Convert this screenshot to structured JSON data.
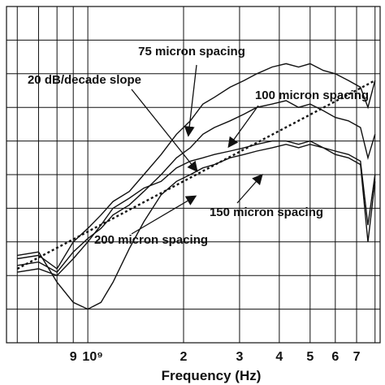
{
  "chart_data": {
    "type": "line",
    "title": "",
    "xlabel": "Frequency (Hz)",
    "ylabel": "",
    "x_scale": "log",
    "x_ticks": [
      {
        "value": 900000000.0,
        "label": "9"
      },
      {
        "value": 1000000000.0,
        "label": "10⁹"
      },
      {
        "value": 2000000000.0,
        "label": "2"
      },
      {
        "value": 3000000000.0,
        "label": "3"
      },
      {
        "value": 4000000000.0,
        "label": "4"
      },
      {
        "value": 5000000000.0,
        "label": "5"
      },
      {
        "value": 6000000000.0,
        "label": "6"
      },
      {
        "value": 7000000000.0,
        "label": "7"
      }
    ],
    "grid": true,
    "annotations": [
      "75 micron spacing",
      "20 dB/decade slope",
      "100 micron spacing",
      "150 micron spacing",
      "200 micron spacing"
    ],
    "series": [
      {
        "name": "75 micron spacing",
        "style": "solid",
        "x": [
          600000000.0,
          700000000.0,
          800000000.0,
          900000000.0,
          1000000000.0,
          1100000000.0,
          1200000000.0,
          1350000000.0,
          1500000000.0,
          1700000000.0,
          1900000000.0,
          2100000000.0,
          2300000000.0,
          2500000000.0,
          2800000000.0,
          3100000000.0,
          3400000000.0,
          3800000000.0,
          4200000000.0,
          4600000000.0,
          5000000000.0,
          5500000000.0,
          6000000000.0,
          6600000000.0,
          7200000000.0,
          7600000000.0,
          8000000000.0
        ],
        "y": [
          0.25,
          0.26,
          0.22,
          0.3,
          0.34,
          0.38,
          0.42,
          0.45,
          0.5,
          0.56,
          0.62,
          0.66,
          0.71,
          0.73,
          0.76,
          0.78,
          0.8,
          0.82,
          0.83,
          0.82,
          0.83,
          0.81,
          0.8,
          0.78,
          0.76,
          0.7,
          0.78
        ]
      },
      {
        "name": "100 micron spacing",
        "style": "solid",
        "x": [
          600000000.0,
          700000000.0,
          800000000.0,
          900000000.0,
          1000000000.0,
          1100000000.0,
          1200000000.0,
          1350000000.0,
          1500000000.0,
          1700000000.0,
          1900000000.0,
          2100000000.0,
          2300000000.0,
          2500000000.0,
          2800000000.0,
          3100000000.0,
          3400000000.0,
          3800000000.0,
          4200000000.0,
          4600000000.0,
          5000000000.0,
          5500000000.0,
          6000000000.0,
          6600000000.0,
          7200000000.0,
          7600000000.0,
          8000000000.0
        ],
        "y": [
          0.23,
          0.24,
          0.21,
          0.27,
          0.31,
          0.34,
          0.38,
          0.41,
          0.45,
          0.5,
          0.55,
          0.58,
          0.62,
          0.64,
          0.66,
          0.68,
          0.7,
          0.71,
          0.72,
          0.7,
          0.71,
          0.69,
          0.67,
          0.66,
          0.64,
          0.55,
          0.62
        ]
      },
      {
        "name": "150 micron spacing",
        "style": "solid",
        "x": [
          600000000.0,
          700000000.0,
          800000000.0,
          900000000.0,
          1000000000.0,
          1100000000.0,
          1200000000.0,
          1350000000.0,
          1500000000.0,
          1700000000.0,
          1900000000.0,
          2100000000.0,
          2300000000.0,
          2500000000.0,
          2800000000.0,
          3100000000.0,
          3400000000.0,
          3800000000.0,
          4200000000.0,
          4600000000.0,
          5000000000.0,
          5500000000.0,
          6000000000.0,
          6600000000.0,
          7200000000.0,
          7600000000.0,
          8000000000.0
        ],
        "y": [
          0.21,
          0.22,
          0.2,
          0.25,
          0.3,
          0.35,
          0.4,
          0.43,
          0.46,
          0.48,
          0.52,
          0.54,
          0.55,
          0.56,
          0.57,
          0.58,
          0.59,
          0.6,
          0.6,
          0.59,
          0.6,
          0.58,
          0.57,
          0.56,
          0.54,
          0.35,
          0.5
        ]
      },
      {
        "name": "200 micron spacing",
        "style": "solid",
        "x": [
          600000000.0,
          700000000.0,
          800000000.0,
          900000000.0,
          1000000000.0,
          1100000000.0,
          1200000000.0,
          1350000000.0,
          1500000000.0,
          1700000000.0,
          1900000000.0,
          2100000000.0,
          2300000000.0,
          2500000000.0,
          2800000000.0,
          3100000000.0,
          3400000000.0,
          3800000000.0,
          4200000000.0,
          4600000000.0,
          5000000000.0,
          5500000000.0,
          6000000000.0,
          6600000000.0,
          7200000000.0,
          7600000000.0,
          8000000000.0
        ],
        "y": [
          0.26,
          0.27,
          0.18,
          0.12,
          0.1,
          0.12,
          0.18,
          0.28,
          0.36,
          0.44,
          0.48,
          0.5,
          0.52,
          0.53,
          0.55,
          0.56,
          0.57,
          0.58,
          0.59,
          0.58,
          0.59,
          0.58,
          0.56,
          0.55,
          0.53,
          0.3,
          0.48
        ]
      },
      {
        "name": "20 dB/decade slope",
        "style": "dotted",
        "x": [
          600000000.0,
          8000000000.0
        ],
        "y": [
          0.22,
          0.78
        ]
      }
    ]
  }
}
